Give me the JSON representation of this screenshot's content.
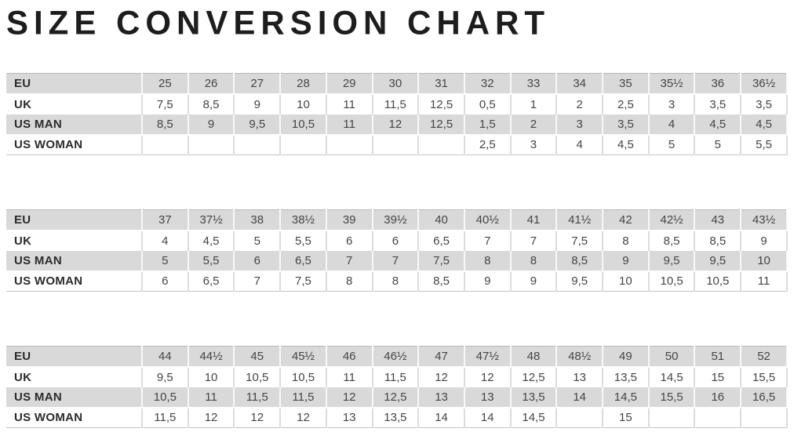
{
  "title": "SIZE CONVERSION CHART",
  "colors": {
    "row_shaded": "#d9d9d9",
    "row_plain": "#ffffff",
    "title_text": "#1d1d1d",
    "label_text": "#2b2b2b",
    "value_text": "#454545"
  },
  "row_labels": [
    "EU",
    "UK",
    "US MAN",
    "US WOMAN"
  ],
  "tables": [
    {
      "rows": [
        {
          "label": "EU",
          "values": [
            "25",
            "26",
            "27",
            "28",
            "29",
            "30",
            "31",
            "32",
            "33",
            "34",
            "35",
            "35½",
            "36",
            "36½"
          ]
        },
        {
          "label": "UK",
          "values": [
            "7,5",
            "8,5",
            "9",
            "10",
            "11",
            "11,5",
            "12,5",
            "0,5",
            "1",
            "2",
            "2,5",
            "3",
            "3,5",
            "3,5"
          ]
        },
        {
          "label": "US MAN",
          "values": [
            "8,5",
            "9",
            "9,5",
            "10,5",
            "11",
            "12",
            "12,5",
            "1,5",
            "2",
            "3",
            "3,5",
            "4",
            "4,5",
            "4,5"
          ]
        },
        {
          "label": "US WOMAN",
          "values": [
            "",
            "",
            "",
            "",
            "",
            "",
            "",
            "2,5",
            "3",
            "4",
            "4,5",
            "5",
            "5",
            "5,5"
          ]
        }
      ]
    },
    {
      "rows": [
        {
          "label": "EU",
          "values": [
            "37",
            "37½",
            "38",
            "38½",
            "39",
            "39½",
            "40",
            "40½",
            "41",
            "41½",
            "42",
            "42½",
            "43",
            "43½"
          ]
        },
        {
          "label": "UK",
          "values": [
            "4",
            "4,5",
            "5",
            "5,5",
            "6",
            "6",
            "6,5",
            "7",
            "7",
            "7,5",
            "8",
            "8,5",
            "8,5",
            "9"
          ]
        },
        {
          "label": "US MAN",
          "values": [
            "5",
            "5,5",
            "6",
            "6,5",
            "7",
            "7",
            "7,5",
            "8",
            "8",
            "8,5",
            "9",
            "9,5",
            "9,5",
            "10"
          ]
        },
        {
          "label": "US WOMAN",
          "values": [
            "6",
            "6,5",
            "7",
            "7,5",
            "8",
            "8",
            "8,5",
            "9",
            "9",
            "9,5",
            "10",
            "10,5",
            "10,5",
            "11"
          ]
        }
      ]
    },
    {
      "rows": [
        {
          "label": "EU",
          "values": [
            "44",
            "44½",
            "45",
            "45½",
            "46",
            "46½",
            "47",
            "47½",
            "48",
            "48½",
            "49",
            "50",
            "51",
            "52"
          ]
        },
        {
          "label": "UK",
          "values": [
            "9,5",
            "10",
            "10,5",
            "10,5",
            "11",
            "11,5",
            "12",
            "12",
            "12,5",
            "13",
            "13,5",
            "14,5",
            "15",
            "15,5"
          ]
        },
        {
          "label": "US MAN",
          "values": [
            "10,5",
            "11",
            "11,5",
            "11,5",
            "12",
            "12,5",
            "13",
            "13",
            "13,5",
            "14",
            "14,5",
            "15,5",
            "16",
            "16,5"
          ]
        },
        {
          "label": "US WOMAN",
          "values": [
            "11,5",
            "12",
            "12",
            "12",
            "13",
            "13,5",
            "14",
            "14",
            "14,5",
            "",
            "15",
            "",
            "",
            ""
          ]
        }
      ]
    }
  ]
}
